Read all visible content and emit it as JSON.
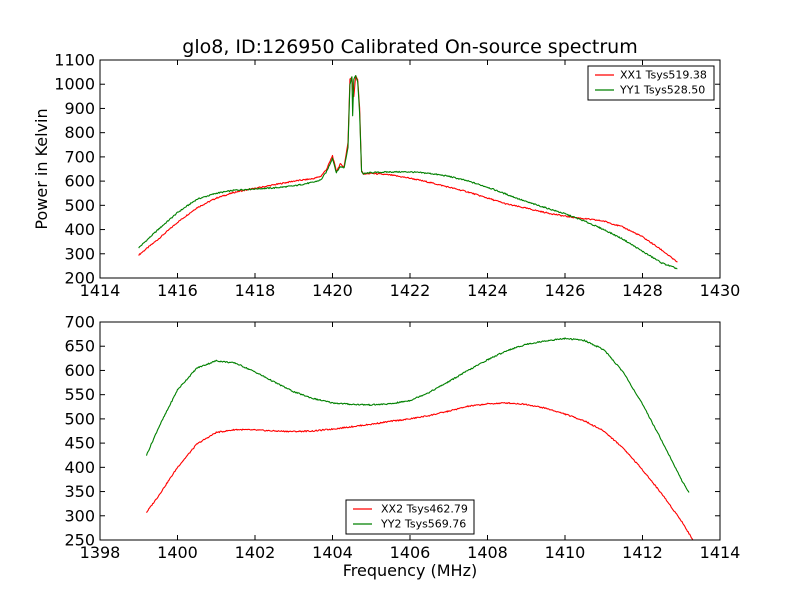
{
  "chart_data": [
    {
      "type": "line",
      "title": "glo8, ID:126950 Calibrated On-source spectrum",
      "xlabel": "",
      "ylabel": "Power in Kelvin",
      "xlim": [
        1414,
        1430
      ],
      "ylim": [
        200,
        1100
      ],
      "xticks": [
        "1414",
        "1416",
        "1418",
        "1420",
        "1422",
        "1424",
        "1426",
        "1428",
        "1430"
      ],
      "yticks": [
        "200",
        "300",
        "400",
        "500",
        "600",
        "700",
        "800",
        "900",
        "1000",
        "1100"
      ],
      "legend_position": "top-right",
      "series": [
        {
          "name": "XX1 Tsys519.38",
          "color": "#ff0000",
          "x": [
            1415.0,
            1415.5,
            1416.0,
            1416.5,
            1417.0,
            1417.5,
            1418.0,
            1418.5,
            1419.0,
            1419.5,
            1419.7,
            1419.85,
            1420.0,
            1420.1,
            1420.2,
            1420.3,
            1420.4,
            1420.45,
            1420.5,
            1420.55,
            1420.6,
            1420.65,
            1420.7,
            1420.75,
            1420.8,
            1420.9,
            1421.0,
            1421.5,
            1422.0,
            1422.5,
            1423.0,
            1423.5,
            1424.0,
            1424.5,
            1425.0,
            1425.5,
            1426.0,
            1426.5,
            1427.0,
            1427.5,
            1428.0,
            1428.5,
            1428.9
          ],
          "y": [
            295,
            360,
            430,
            490,
            530,
            555,
            570,
            585,
            600,
            610,
            620,
            650,
            705,
            640,
            670,
            660,
            760,
            1020,
            1030,
            950,
            1035,
            1020,
            900,
            640,
            630,
            630,
            632,
            625,
            612,
            595,
            575,
            555,
            530,
            505,
            488,
            470,
            455,
            445,
            435,
            410,
            370,
            315,
            265
          ]
        },
        {
          "name": "YY1 Tsys528.50",
          "color": "#008000",
          "x": [
            1415.0,
            1415.5,
            1416.0,
            1416.5,
            1417.0,
            1417.5,
            1418.0,
            1418.5,
            1419.0,
            1419.5,
            1419.7,
            1419.85,
            1420.0,
            1420.1,
            1420.2,
            1420.3,
            1420.4,
            1420.45,
            1420.5,
            1420.52,
            1420.55,
            1420.6,
            1420.65,
            1420.7,
            1420.75,
            1420.8,
            1420.9,
            1421.0,
            1421.5,
            1422.0,
            1422.5,
            1423.0,
            1423.5,
            1424.0,
            1424.5,
            1425.0,
            1425.5,
            1426.0,
            1426.5,
            1427.0,
            1427.5,
            1428.0,
            1428.5,
            1428.9
          ],
          "y": [
            325,
            400,
            470,
            525,
            550,
            563,
            568,
            572,
            580,
            595,
            605,
            640,
            695,
            635,
            660,
            655,
            740,
            1000,
            1030,
            870,
            1020,
            1035,
            1010,
            880,
            640,
            630,
            633,
            635,
            638,
            638,
            632,
            620,
            600,
            575,
            545,
            515,
            490,
            465,
            435,
            400,
            360,
            310,
            262,
            238
          ]
        }
      ]
    },
    {
      "type": "line",
      "title": "",
      "xlabel": "Frequency (MHz)",
      "ylabel": "",
      "xlim": [
        1398,
        1414
      ],
      "ylim": [
        250,
        700
      ],
      "xticks": [
        "1398",
        "1400",
        "1402",
        "1404",
        "1406",
        "1408",
        "1410",
        "1412",
        "1414"
      ],
      "yticks": [
        "250",
        "300",
        "350",
        "400",
        "450",
        "500",
        "550",
        "600",
        "650",
        "700"
      ],
      "legend_position": "bottom-center",
      "series": [
        {
          "name": "XX2 Tsys462.79",
          "color": "#ff0000",
          "x": [
            1399.2,
            1399.5,
            1400.0,
            1400.5,
            1401.0,
            1401.5,
            1402.0,
            1402.5,
            1403.0,
            1403.5,
            1404.0,
            1404.5,
            1405.0,
            1405.5,
            1406.0,
            1406.5,
            1407.0,
            1407.5,
            1408.0,
            1408.5,
            1409.0,
            1409.5,
            1410.0,
            1410.5,
            1411.0,
            1411.5,
            1412.0,
            1412.5,
            1413.0,
            1413.3
          ],
          "y": [
            307,
            340,
            400,
            448,
            472,
            478,
            477,
            475,
            474,
            475,
            479,
            484,
            489,
            495,
            500,
            507,
            516,
            526,
            531,
            533,
            530,
            522,
            510,
            496,
            475,
            440,
            395,
            345,
            290,
            250
          ]
        },
        {
          "name": "YY2 Tsys569.76",
          "color": "#008000",
          "x": [
            1399.2,
            1399.5,
            1400.0,
            1400.5,
            1401.0,
            1401.5,
            1402.0,
            1402.5,
            1403.0,
            1403.5,
            1404.0,
            1404.5,
            1405.0,
            1405.5,
            1406.0,
            1406.5,
            1407.0,
            1407.5,
            1408.0,
            1408.5,
            1409.0,
            1409.5,
            1410.0,
            1410.5,
            1411.0,
            1411.5,
            1412.0,
            1412.5,
            1413.0,
            1413.2
          ],
          "y": [
            425,
            480,
            560,
            605,
            620,
            615,
            597,
            576,
            556,
            542,
            533,
            530,
            529,
            531,
            538,
            555,
            577,
            600,
            622,
            641,
            654,
            661,
            666,
            662,
            643,
            597,
            530,
            455,
            375,
            348
          ]
        }
      ]
    }
  ]
}
